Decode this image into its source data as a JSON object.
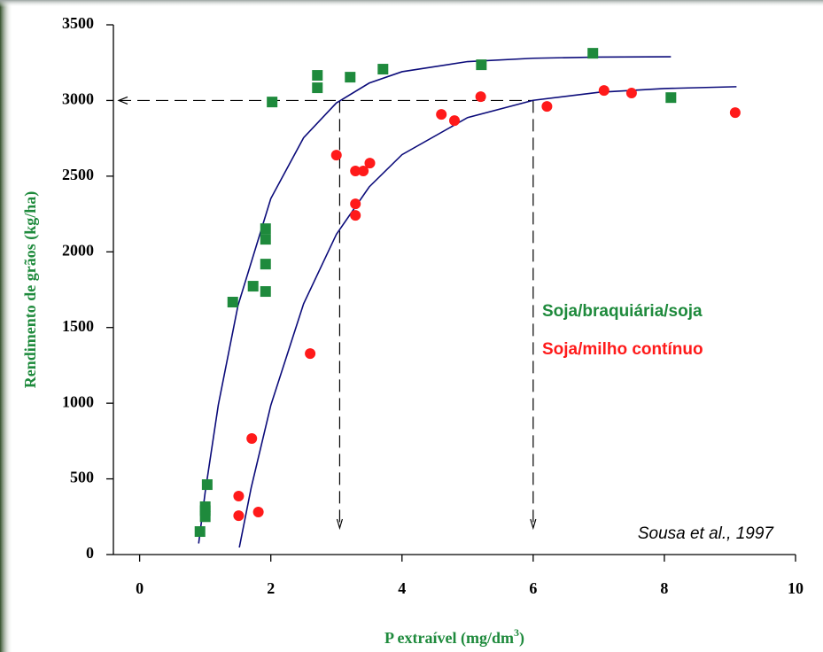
{
  "chart_data": {
    "type": "scatter",
    "y_label": "Rendimento de grãos (kg/ha)",
    "x_label": [
      "P extraível (mg/dm",
      "3",
      ")"
    ],
    "annotation": "Sousa et al., 1997",
    "legend": "center-right",
    "xlim": [
      -0.4,
      10
    ],
    "xticks": [
      0,
      2,
      4,
      6,
      8,
      10
    ],
    "ylim": [
      0,
      3500
    ],
    "yticks": [
      0,
      500,
      1000,
      1500,
      2000,
      2500,
      3000,
      3500
    ],
    "guide_y": 3000,
    "guide_x": [
      3.05,
      6
    ],
    "series": [
      {
        "name": "Soja/braquiária/soja",
        "color": "#1e8a3c",
        "marker": "square",
        "x": [
          0.92,
          1.03,
          1.0,
          1.0,
          1.0,
          1.42,
          1.73,
          1.92,
          1.92,
          1.92,
          1.92,
          2.02,
          2.71,
          2.71,
          3.21,
          3.71,
          5.21,
          6.91,
          8.1
        ],
        "values": [
          152,
          462,
          316,
          290,
          250,
          1668,
          1773,
          1738,
          1919,
          2083,
          2153,
          2990,
          3166,
          3084,
          3154,
          3207,
          3236,
          3312,
          3019
        ]
      },
      {
        "name": "Soja/milho contínuo",
        "color": "#ff1a1a",
        "marker": "circle",
        "x": [
          1.51,
          1.51,
          1.71,
          1.81,
          2.6,
          3.0,
          3.29,
          3.41,
          3.51,
          3.29,
          3.29,
          4.6,
          4.8,
          5.2,
          6.21,
          7.08,
          7.5,
          9.08
        ],
        "values": [
          386,
          257,
          767,
          281,
          1328,
          2639,
          2534,
          2534,
          2586,
          2317,
          2241,
          2908,
          2867,
          3025,
          2961,
          3066,
          3049,
          2920
        ]
      }
    ],
    "curves": [
      {
        "color": "#0b0b7a",
        "x": [
          0.9,
          1.0,
          1.2,
          1.5,
          2.0,
          2.5,
          3.0,
          3.5,
          4.0,
          5.0,
          6.0,
          7.0,
          8.1
        ],
        "values": [
          73,
          414,
          990,
          1646,
          2352,
          2754,
          2984,
          3115,
          3190,
          3257,
          3279,
          3287,
          3289
        ]
      },
      {
        "color": "#0b0b7a",
        "x": [
          1.52,
          1.7,
          2.0,
          2.5,
          3.0,
          3.5,
          4.0,
          5.0,
          6.0,
          7.0,
          8.0,
          9.1
        ],
        "values": [
          47,
          440,
          986,
          1657,
          2116,
          2429,
          2642,
          2887,
          3001,
          3054,
          3079,
          3091
        ]
      }
    ]
  }
}
